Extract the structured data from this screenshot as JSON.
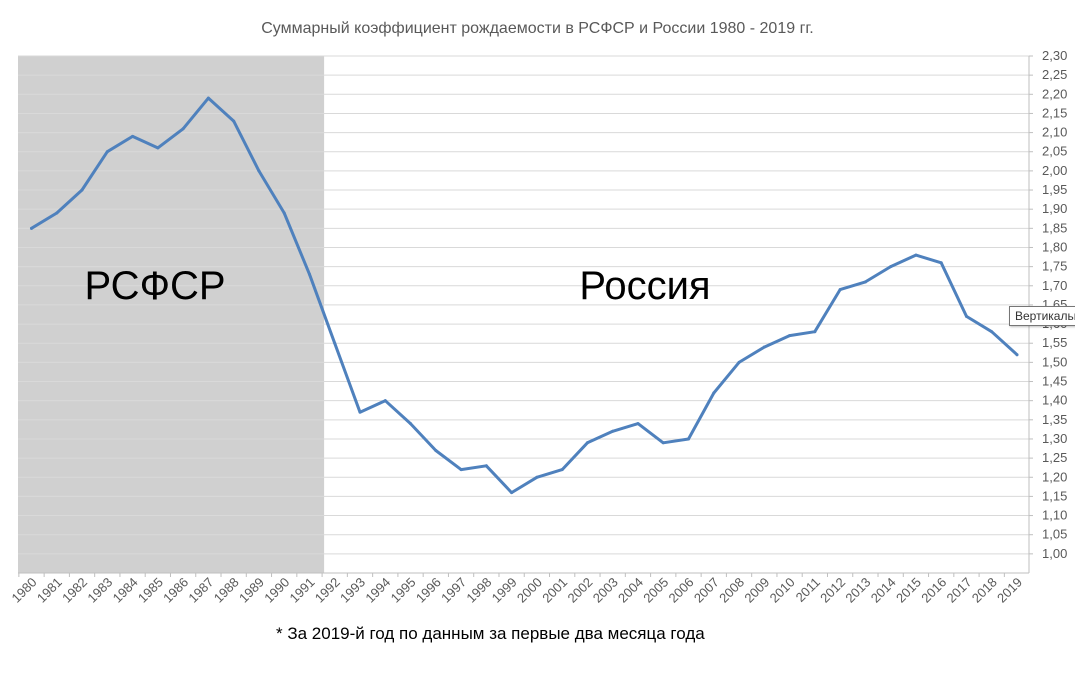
{
  "chart_data": {
    "type": "line",
    "title": "Суммарный коэффициент рождаемости в РСФСР и России 1980 - 2019 гг.",
    "xlabel": "",
    "ylabel": "",
    "ylim": [
      0.95,
      2.3
    ],
    "y_tick_step": 0.05,
    "y_tick_labels": [
      "1,00",
      "1,05",
      "1,10",
      "1,15",
      "1,20",
      "1,25",
      "1,30",
      "1,35",
      "1,40",
      "1,45",
      "1,50",
      "1,55",
      "1,60",
      "1,65",
      "1,70",
      "1,75",
      "1,80",
      "1,85",
      "1,90",
      "1,95",
      "2,00",
      "2,05",
      "2,10",
      "2,15",
      "2,20",
      "2,25",
      "2,30"
    ],
    "y_axis_position": "right",
    "grid": true,
    "line_color": "#4F81BD",
    "categories": [
      "1980",
      "1981",
      "1982",
      "1983",
      "1984",
      "1985",
      "1986",
      "1987",
      "1988",
      "1989",
      "1990",
      "1991",
      "1992",
      "1993",
      "1994",
      "1995",
      "1996",
      "1997",
      "1998",
      "1999",
      "2000",
      "2001",
      "2002",
      "2003",
      "2004",
      "2005",
      "2006",
      "2007",
      "2008",
      "2009",
      "2010",
      "2011",
      "2012",
      "2013",
      "2014",
      "2015",
      "2016",
      "2017",
      "2018",
      "2019"
    ],
    "series": [
      {
        "values": [
          1.85,
          1.89,
          1.95,
          2.05,
          2.09,
          2.06,
          2.11,
          2.19,
          2.13,
          2.0,
          1.89,
          1.73,
          1.55,
          1.37,
          1.4,
          1.34,
          1.27,
          1.22,
          1.23,
          1.16,
          1.2,
          1.22,
          1.29,
          1.32,
          1.34,
          1.29,
          1.3,
          1.42,
          1.5,
          1.54,
          1.57,
          1.58,
          1.69,
          1.71,
          1.75,
          1.78,
          1.76,
          1.62,
          1.58,
          1.52
        ]
      }
    ],
    "shaded_region": {
      "from": "1980",
      "to": "1991",
      "color": "#D0D0D0",
      "label": "РСФСР"
    },
    "region_labels": {
      "russia": "Россия"
    }
  },
  "tooltip": {
    "text": "Вертикальн"
  },
  "footnote": "* За 2019-й год по данным за первые два месяца года"
}
